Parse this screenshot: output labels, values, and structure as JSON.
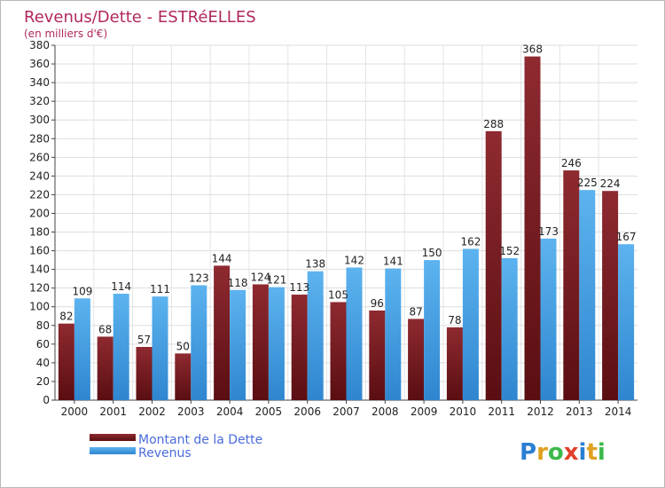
{
  "chart_data": {
    "type": "bar",
    "title": "Revenus/Dette - ESTRéELLES",
    "subtitle": "(en milliers d'€)",
    "categories": [
      "2000",
      "2001",
      "2002",
      "2003",
      "2004",
      "2005",
      "2006",
      "2007",
      "2008",
      "2009",
      "2010",
      "2011",
      "2012",
      "2013",
      "2014"
    ],
    "series": [
      {
        "name": "Montant de la Dette",
        "color": "#7b1d22",
        "values": [
          82,
          68,
          57,
          50,
          144,
          124,
          113,
          105,
          96,
          87,
          78,
          288,
          368,
          246,
          224
        ]
      },
      {
        "name": "Revenus",
        "color": "#4aa3e6",
        "values": [
          109,
          114,
          111,
          123,
          118,
          121,
          138,
          142,
          141,
          150,
          162,
          152,
          173,
          225,
          167
        ]
      }
    ],
    "ylim": [
      0,
      380
    ],
    "ytick_step": 20,
    "grid": true,
    "legend": "bottom-left"
  },
  "logo": {
    "text": "Proxiti"
  }
}
